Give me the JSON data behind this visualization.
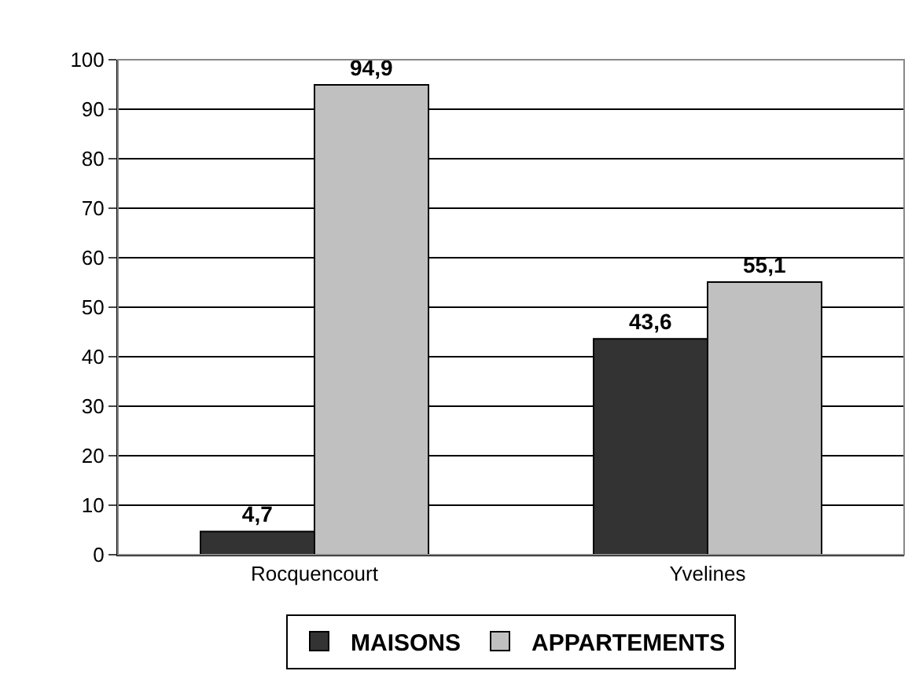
{
  "chart_data": {
    "type": "bar",
    "categories": [
      "Rocquencourt",
      "Yvelines"
    ],
    "series": [
      {
        "name": "MAISONS",
        "color": "#333333",
        "values": [
          4.7,
          43.6
        ],
        "value_labels": [
          "4,7",
          "43,6"
        ]
      },
      {
        "name": "APPARTEMENTS",
        "color": "#c0c0c0",
        "values": [
          94.9,
          55.1
        ],
        "value_labels": [
          "94,9",
          "55,1"
        ]
      }
    ],
    "ylim": [
      0,
      100
    ],
    "yticks": [
      0,
      10,
      20,
      30,
      40,
      50,
      60,
      70,
      80,
      90,
      100
    ],
    "grid": "y",
    "legend": "bottom"
  }
}
